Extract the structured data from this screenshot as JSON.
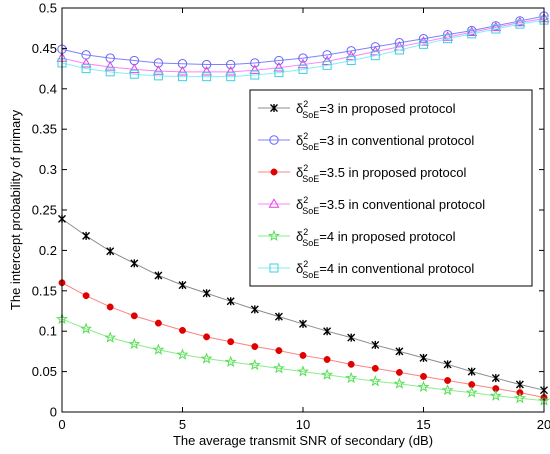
{
  "chart_data": {
    "type": "line",
    "xlabel": "The average transmit SNR of secondary (dB)",
    "ylabel": "The intercept probability of primary",
    "xlim": [
      0,
      20
    ],
    "ylim": [
      0,
      0.5
    ],
    "xticks": [
      0,
      5,
      10,
      15,
      20
    ],
    "xtick_labels": [
      "0",
      "5",
      "10",
      "15",
      "20"
    ],
    "yticks": [
      0,
      0.05,
      0.1,
      0.15,
      0.2,
      0.25,
      0.3,
      0.35,
      0.4,
      0.45,
      0.5
    ],
    "ytick_labels": [
      "0",
      "0.05",
      "0.1",
      "0.15",
      "0.2",
      "0.25",
      "0.3",
      "0.35",
      "0.4",
      "0.45",
      "0.5"
    ],
    "grid": false,
    "legend_position": "right",
    "x": [
      0,
      1,
      2,
      3,
      4,
      5,
      6,
      7,
      8,
      9,
      10,
      11,
      12,
      13,
      14,
      15,
      16,
      17,
      18,
      19,
      20
    ],
    "series": [
      {
        "name": "=3 in proposed protocol",
        "sigma_value": "3",
        "marker": "cross",
        "color": "#000000",
        "line_color": "#8c8c8c",
        "values": [
          0.239,
          0.218,
          0.199,
          0.184,
          0.169,
          0.157,
          0.147,
          0.137,
          0.127,
          0.118,
          0.109,
          0.1,
          0.092,
          0.083,
          0.075,
          0.067,
          0.059,
          0.05,
          0.042,
          0.034,
          0.027
        ]
      },
      {
        "name": "=3 in conventional protocol",
        "sigma_value": "3",
        "marker": "circle",
        "color": "#6666ff",
        "line_color": "#8080ff",
        "values": [
          0.449,
          0.442,
          0.438,
          0.435,
          0.432,
          0.431,
          0.43,
          0.43,
          0.432,
          0.435,
          0.438,
          0.442,
          0.447,
          0.452,
          0.457,
          0.462,
          0.467,
          0.472,
          0.478,
          0.484,
          0.49
        ]
      },
      {
        "name": "=3.5 in proposed protocol",
        "sigma_value": "3.5",
        "marker": "dot",
        "color": "#e00000",
        "line_color": "#ff8080",
        "values": [
          0.16,
          0.144,
          0.13,
          0.119,
          0.11,
          0.101,
          0.093,
          0.087,
          0.081,
          0.076,
          0.07,
          0.065,
          0.059,
          0.054,
          0.049,
          0.044,
          0.039,
          0.034,
          0.029,
          0.024,
          0.018
        ]
      },
      {
        "name": "=3.5 in conventional protocol",
        "sigma_value": "3.5",
        "marker": "triangle",
        "color": "#e040e0",
        "line_color": "#ff80ff",
        "values": [
          0.438,
          0.431,
          0.427,
          0.424,
          0.422,
          0.421,
          0.421,
          0.421,
          0.423,
          0.426,
          0.43,
          0.434,
          0.44,
          0.446,
          0.452,
          0.458,
          0.464,
          0.47,
          0.476,
          0.482,
          0.487
        ]
      },
      {
        "name": "=4 in proposed protocol",
        "sigma_value": "4",
        "marker": "star",
        "color": "#55dd55",
        "line_color": "#88ee88",
        "values": [
          0.115,
          0.103,
          0.092,
          0.084,
          0.077,
          0.071,
          0.066,
          0.062,
          0.058,
          0.054,
          0.05,
          0.046,
          0.042,
          0.038,
          0.035,
          0.031,
          0.027,
          0.024,
          0.02,
          0.017,
          0.014
        ]
      },
      {
        "name": "=4 in conventional protocol",
        "sigma_value": "4",
        "marker": "square",
        "color": "#40d0e0",
        "line_color": "#80f0f0",
        "values": [
          0.432,
          0.425,
          0.421,
          0.418,
          0.416,
          0.415,
          0.415,
          0.415,
          0.417,
          0.42,
          0.424,
          0.429,
          0.435,
          0.441,
          0.448,
          0.455,
          0.462,
          0.468,
          0.474,
          0.48,
          0.485
        ]
      }
    ],
    "legend_symbol": "δ",
    "legend_sup": "2",
    "legend_sub": "SoE"
  }
}
